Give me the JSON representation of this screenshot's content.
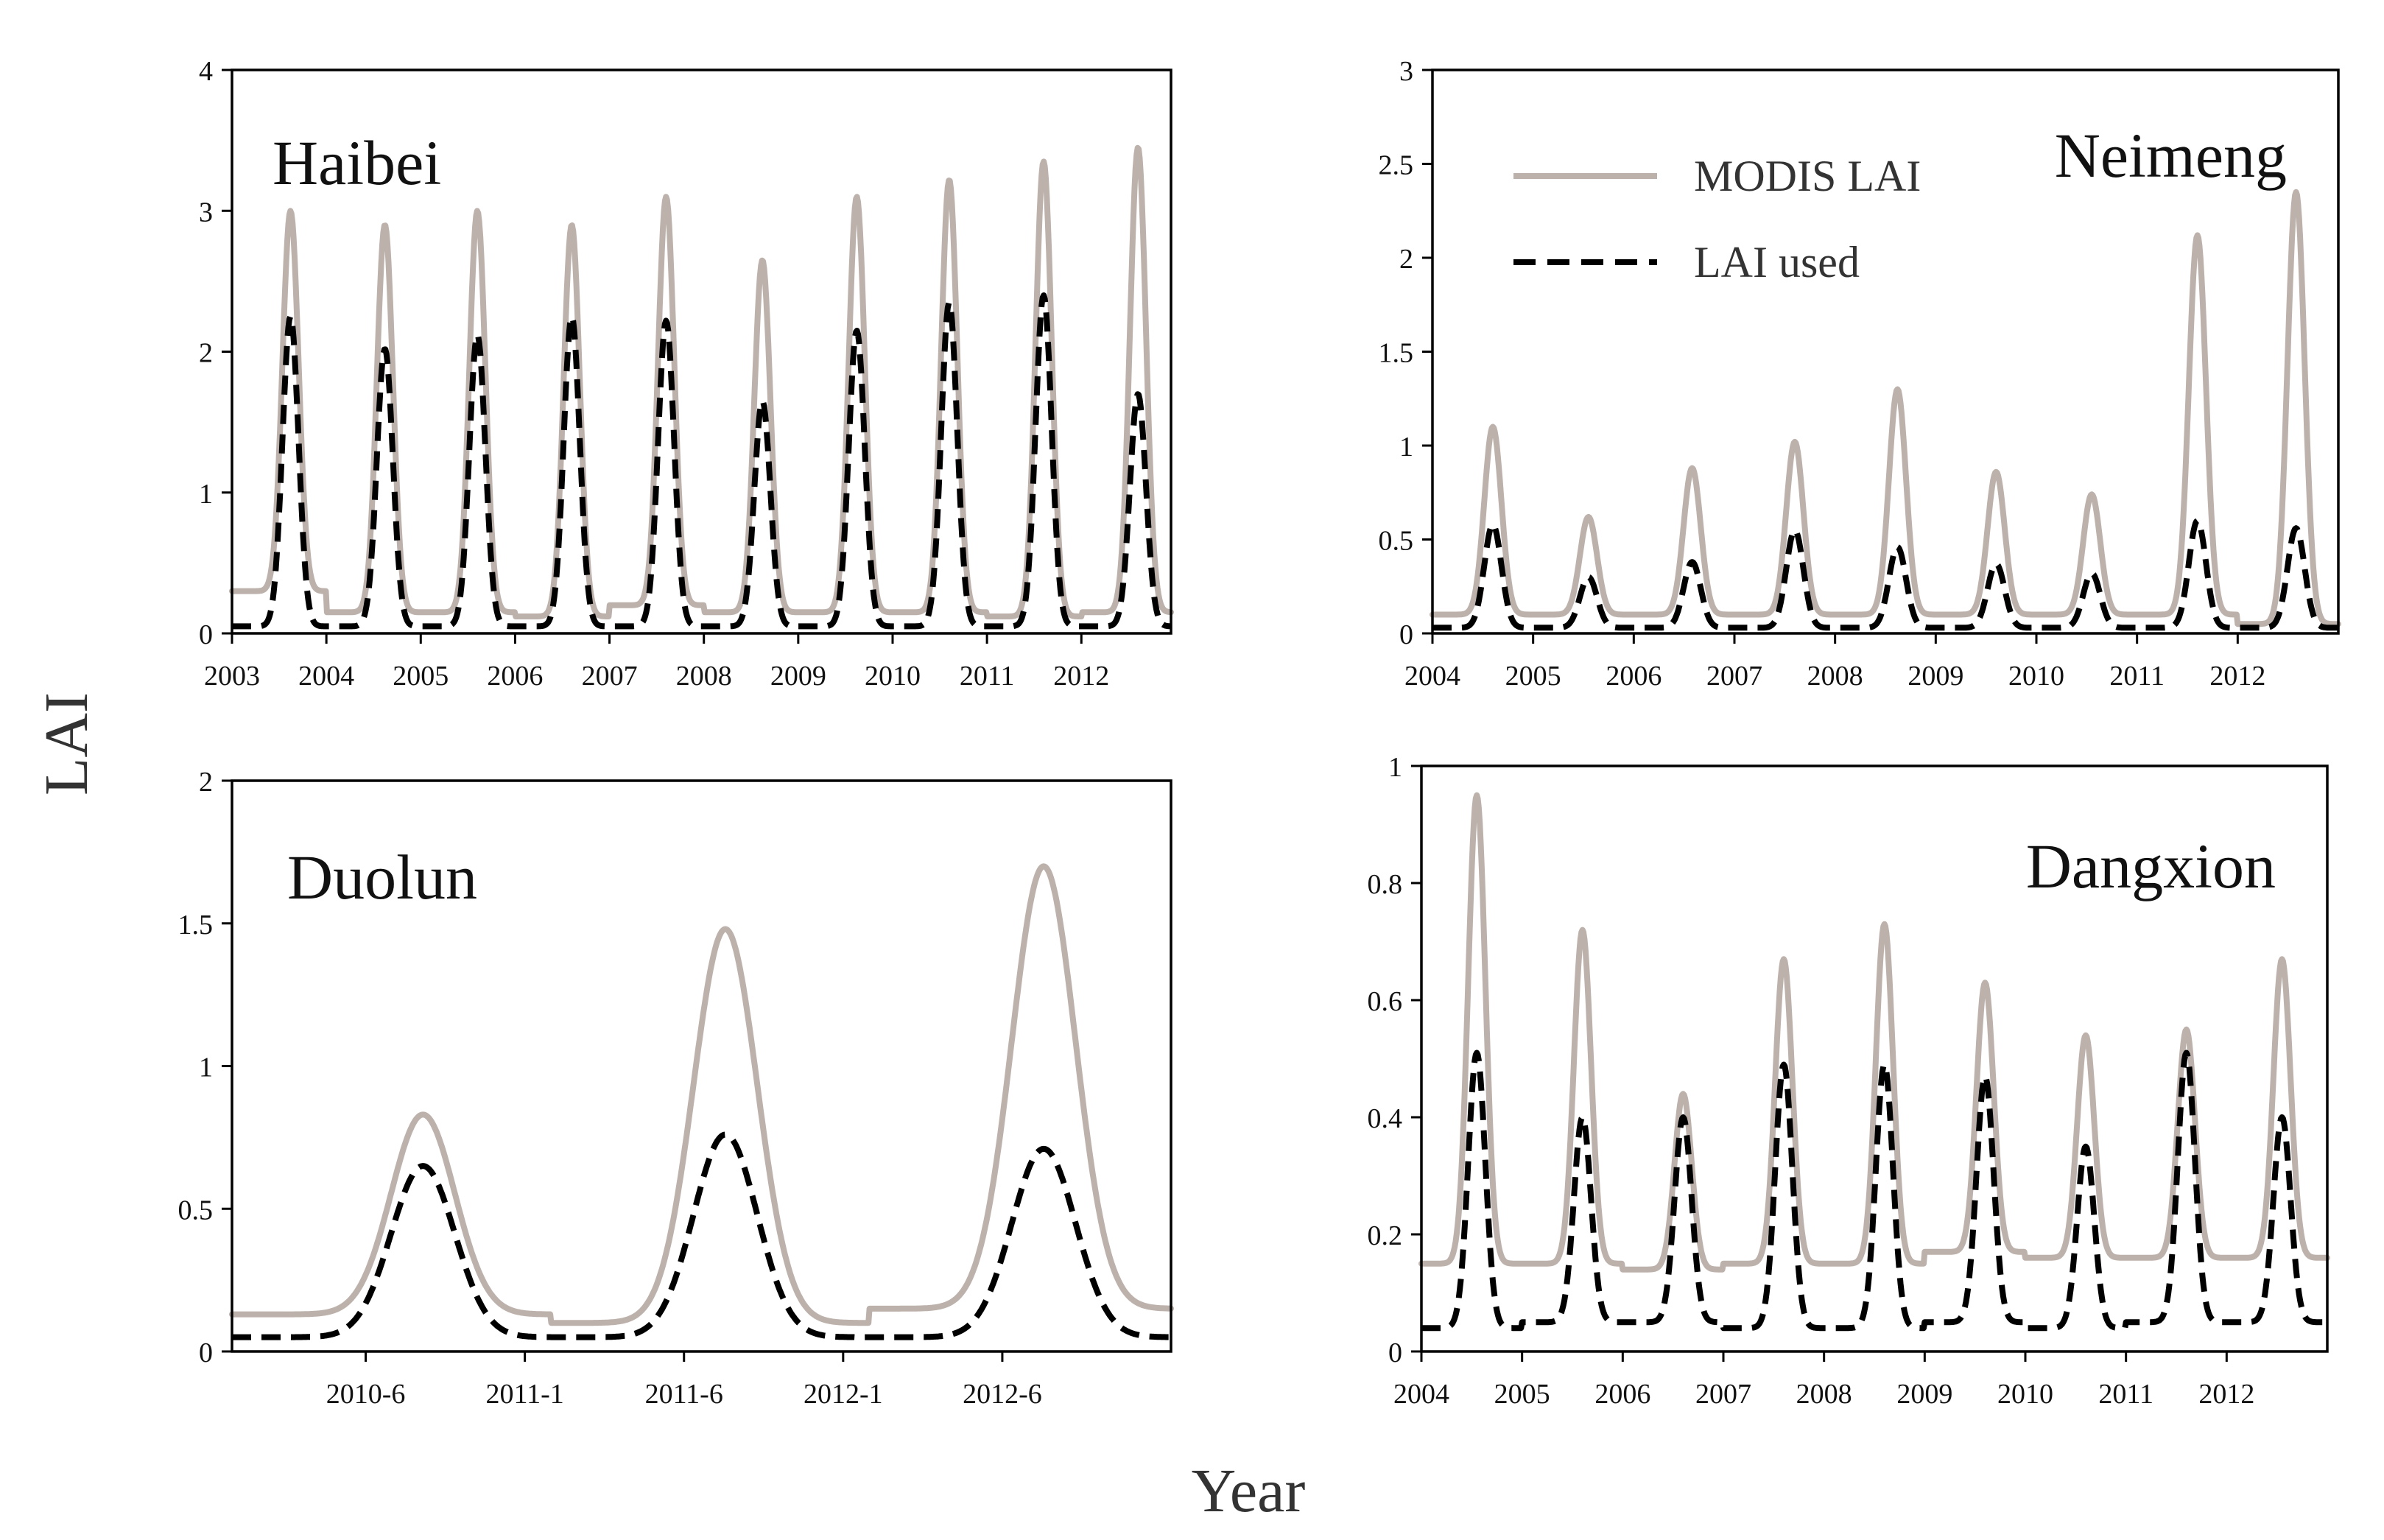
{
  "figure": {
    "ylabel": "LAI",
    "xlabel": "Year"
  },
  "legend": {
    "modis_label": "MODIS LAI",
    "used_label": "LAI used",
    "modis_color": "#bdb1ab",
    "used_color": "#000000"
  },
  "chart_data": [
    {
      "type": "line",
      "title": "Haibei",
      "xlabel": "Year",
      "ylabel": "LAI",
      "xlim": [
        2003.0,
        2012.95
      ],
      "ylim": [
        0,
        4
      ],
      "yticks": [
        0,
        1,
        2,
        3,
        4
      ],
      "ytick_labels": [
        "0",
        "1",
        "2",
        "3",
        "4"
      ],
      "xticks": [
        2003.0,
        2004.0,
        2005.0,
        2006.0,
        2007.0,
        2008.0,
        2009.0,
        2010.0,
        2011.0,
        2012.0
      ],
      "xtick_labels": [
        "2003",
        "2004",
        "2005",
        "2006",
        "2007",
        "2008",
        "2009",
        "2010",
        "2011",
        "2012"
      ],
      "series": [
        {
          "name": "MODIS LAI",
          "baseline": [
            0.3,
            0.15,
            0.15,
            0.12,
            0.2,
            0.15,
            0.15,
            0.15,
            0.12,
            0.15
          ],
          "peaks": [
            {
              "year": 2003.62,
              "value": 3.0
            },
            {
              "year": 2004.62,
              "value": 2.9
            },
            {
              "year": 2005.6,
              "value": 3.0
            },
            {
              "year": 2006.6,
              "value": 2.9
            },
            {
              "year": 2007.6,
              "value": 3.1
            },
            {
              "year": 2008.62,
              "value": 2.65
            },
            {
              "year": 2009.62,
              "value": 3.1
            },
            {
              "year": 2010.6,
              "value": 3.22
            },
            {
              "year": 2011.6,
              "value": 3.35
            },
            {
              "year": 2012.6,
              "value": 3.45
            }
          ]
        },
        {
          "name": "LAI used",
          "baseline": [
            0.05,
            0.05,
            0.05,
            0.05,
            0.05,
            0.05,
            0.05,
            0.05,
            0.05,
            0.05
          ],
          "peaks": [
            {
              "year": 2003.62,
              "value": 2.25
            },
            {
              "year": 2004.62,
              "value": 2.02
            },
            {
              "year": 2005.6,
              "value": 2.12
            },
            {
              "year": 2006.6,
              "value": 2.25
            },
            {
              "year": 2007.6,
              "value": 2.22
            },
            {
              "year": 2008.62,
              "value": 1.65
            },
            {
              "year": 2009.62,
              "value": 2.15
            },
            {
              "year": 2010.6,
              "value": 2.35
            },
            {
              "year": 2011.6,
              "value": 2.4
            },
            {
              "year": 2012.6,
              "value": 1.7
            }
          ]
        }
      ]
    },
    {
      "type": "line",
      "title": "Neimeng",
      "xlabel": "Year",
      "ylabel": "LAI",
      "xlim": [
        2004.0,
        2013.0
      ],
      "ylim": [
        0,
        3
      ],
      "yticks": [
        0,
        0.5,
        1,
        1.5,
        2,
        2.5,
        3
      ],
      "ytick_labels": [
        "0",
        "0.5",
        "1",
        "1.5",
        "2",
        "2.5",
        "3"
      ],
      "xticks": [
        2004.0,
        2005.0,
        2006.0,
        2007.0,
        2008.0,
        2009.0,
        2010.0,
        2011.0,
        2012.0
      ],
      "xtick_labels": [
        "2004",
        "2005",
        "2006",
        "2007",
        "2008",
        "2009",
        "2010",
        "2011",
        "2012"
      ],
      "legend_position": "top",
      "series": [
        {
          "name": "MODIS LAI",
          "baseline": [
            0.1,
            0.1,
            0.1,
            0.1,
            0.1,
            0.1,
            0.1,
            0.1,
            0.05
          ],
          "peaks": [
            {
              "year": 2004.6,
              "value": 1.1
            },
            {
              "year": 2005.55,
              "value": 0.62
            },
            {
              "year": 2006.58,
              "value": 0.88
            },
            {
              "year": 2007.6,
              "value": 1.02
            },
            {
              "year": 2008.62,
              "value": 1.3
            },
            {
              "year": 2009.6,
              "value": 0.86
            },
            {
              "year": 2010.55,
              "value": 0.74
            },
            {
              "year": 2011.6,
              "value": 2.12
            },
            {
              "year": 2012.58,
              "value": 2.35
            }
          ]
        },
        {
          "name": "LAI used",
          "baseline": [
            0.03,
            0.03,
            0.03,
            0.03,
            0.03,
            0.03,
            0.03,
            0.03,
            0.03
          ],
          "peaks": [
            {
              "year": 2004.6,
              "value": 0.58
            },
            {
              "year": 2005.55,
              "value": 0.3
            },
            {
              "year": 2006.58,
              "value": 0.38
            },
            {
              "year": 2007.6,
              "value": 0.55
            },
            {
              "year": 2008.62,
              "value": 0.46
            },
            {
              "year": 2009.6,
              "value": 0.37
            },
            {
              "year": 2010.55,
              "value": 0.32
            },
            {
              "year": 2011.6,
              "value": 0.6
            },
            {
              "year": 2012.58,
              "value": 0.56
            }
          ]
        }
      ]
    },
    {
      "type": "line",
      "title": "Duolun",
      "xlabel": "Year",
      "ylabel": "LAI",
      "xlim": [
        2010.0,
        2012.95
      ],
      "ylim": [
        0,
        2
      ],
      "yticks": [
        0,
        0.5,
        1,
        1.5,
        2
      ],
      "ytick_labels": [
        "0",
        "0.5",
        "1",
        "1.5",
        "2"
      ],
      "xticks": [
        2010.42,
        2010.92,
        2011.42,
        2011.92,
        2012.42
      ],
      "xtick_labels": [
        "2010-6",
        "2011-1",
        "2011-6",
        "2012-1",
        "2012-6"
      ],
      "series": [
        {
          "name": "MODIS LAI",
          "baseline": [
            0.13,
            0.1,
            0.15
          ],
          "peaks": [
            {
              "year": 2010.6,
              "value": 0.83
            },
            {
              "year": 2011.55,
              "value": 1.48
            },
            {
              "year": 2012.55,
              "value": 1.7
            }
          ]
        },
        {
          "name": "LAI used",
          "baseline": [
            0.05,
            0.05,
            0.05
          ],
          "peaks": [
            {
              "year": 2010.6,
              "value": 0.65
            },
            {
              "year": 2011.55,
              "value": 0.76
            },
            {
              "year": 2012.55,
              "value": 0.71
            }
          ]
        }
      ]
    },
    {
      "type": "line",
      "title": "Dangxion",
      "xlabel": "Year",
      "ylabel": "LAI",
      "xlim": [
        2004.0,
        2013.0
      ],
      "ylim": [
        0,
        1
      ],
      "yticks": [
        0,
        0.2,
        0.4,
        0.6,
        0.8,
        1
      ],
      "ytick_labels": [
        "0",
        "0.2",
        "0.4",
        "0.6",
        "0.8",
        "1"
      ],
      "xticks": [
        2004.0,
        2005.0,
        2006.0,
        2007.0,
        2008.0,
        2009.0,
        2010.0,
        2011.0,
        2012.0
      ],
      "xtick_labels": [
        "2004",
        "2005",
        "2006",
        "2007",
        "2008",
        "2009",
        "2010",
        "2011",
        "2012"
      ],
      "series": [
        {
          "name": "MODIS LAI",
          "baseline": [
            0.15,
            0.15,
            0.14,
            0.15,
            0.15,
            0.17,
            0.16,
            0.16,
            0.16
          ],
          "peaks": [
            {
              "year": 2004.55,
              "value": 0.95
            },
            {
              "year": 2005.6,
              "value": 0.72
            },
            {
              "year": 2006.6,
              "value": 0.44
            },
            {
              "year": 2007.6,
              "value": 0.67
            },
            {
              "year": 2008.6,
              "value": 0.73
            },
            {
              "year": 2009.6,
              "value": 0.63
            },
            {
              "year": 2010.6,
              "value": 0.54
            },
            {
              "year": 2011.6,
              "value": 0.55
            },
            {
              "year": 2012.55,
              "value": 0.67
            }
          ]
        },
        {
          "name": "LAI used",
          "baseline": [
            0.04,
            0.05,
            0.05,
            0.04,
            0.04,
            0.05,
            0.04,
            0.05,
            0.05
          ],
          "peaks": [
            {
              "year": 2004.55,
              "value": 0.51
            },
            {
              "year": 2005.6,
              "value": 0.4
            },
            {
              "year": 2006.6,
              "value": 0.4
            },
            {
              "year": 2007.6,
              "value": 0.49
            },
            {
              "year": 2008.6,
              "value": 0.49
            },
            {
              "year": 2009.6,
              "value": 0.47
            },
            {
              "year": 2010.6,
              "value": 0.35
            },
            {
              "year": 2011.6,
              "value": 0.51
            },
            {
              "year": 2012.55,
              "value": 0.4
            }
          ]
        }
      ]
    }
  ]
}
